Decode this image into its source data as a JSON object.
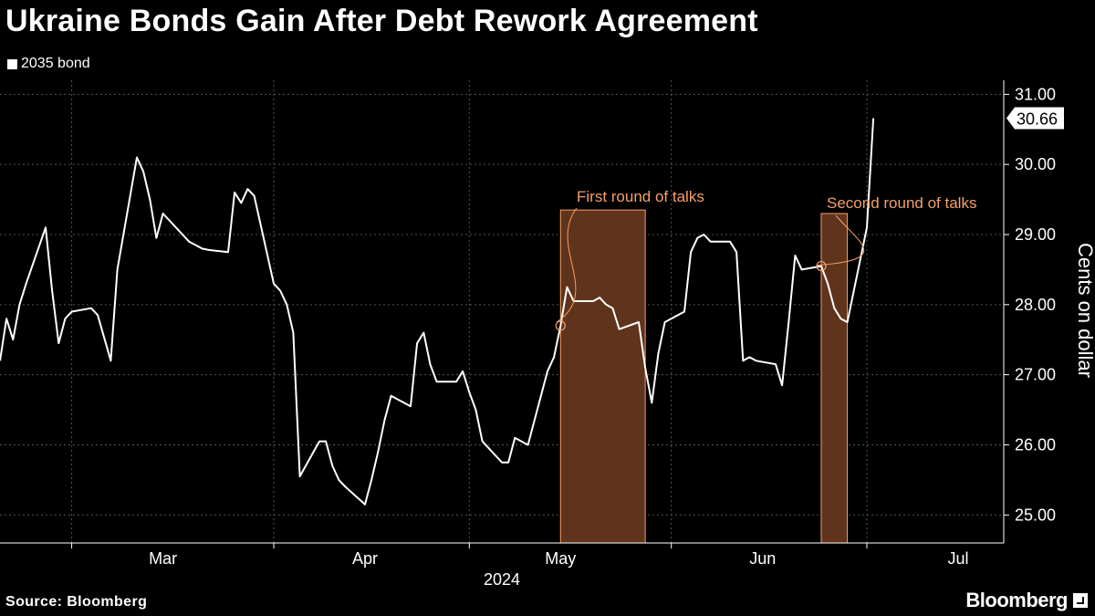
{
  "title": "Ukraine Bonds Gain After Debt Rework Agreement",
  "source": "Source: Bloomberg",
  "brand": "Bloomberg",
  "colors": {
    "background": "#000000",
    "line": "#ffffff",
    "shade_fill": "#60331c",
    "shade_stroke": "#f4a06a",
    "annotation": "#f4a06a",
    "grid": "#555555"
  },
  "chart_data": {
    "type": "line",
    "title": "Ukraine Bonds Gain After Debt Rework Agreement",
    "xlabel": "",
    "ylabel": "Cents on dollar",
    "year_label": "2024",
    "ylim": [
      24.6,
      31.2
    ],
    "y_ticks": [
      25.0,
      26.0,
      27.0,
      28.0,
      29.0,
      30.0,
      31.0
    ],
    "y_tick_labels": [
      "25.00",
      "26.00",
      "27.00",
      "28.00",
      "29.00",
      "30.00",
      "31.00"
    ],
    "x_range": [
      "2024-02-19",
      "2024-07-22"
    ],
    "month_labels": [
      {
        "label": "Mar",
        "date": "2024-03-15"
      },
      {
        "label": "Apr",
        "date": "2024-04-15"
      },
      {
        "label": "May",
        "date": "2024-05-15"
      },
      {
        "label": "Jun",
        "date": "2024-06-15"
      },
      {
        "label": "Jul",
        "date": "2024-07-15"
      }
    ],
    "gridlines_dates": [
      "2024-03-01",
      "2024-04-01",
      "2024-05-01",
      "2024-06-01",
      "2024-07-01"
    ],
    "grid": true,
    "legend_placement": "top-left",
    "series": [
      {
        "name": "2035 bond",
        "points": [
          [
            "2024-02-19",
            27.2
          ],
          [
            "2024-02-20",
            27.8
          ],
          [
            "2024-02-21",
            27.5
          ],
          [
            "2024-02-22",
            28.0
          ],
          [
            "2024-02-23",
            28.3
          ],
          [
            "2024-02-26",
            29.1
          ],
          [
            "2024-02-27",
            28.2
          ],
          [
            "2024-02-28",
            27.45
          ],
          [
            "2024-02-29",
            27.8
          ],
          [
            "2024-03-01",
            27.9
          ],
          [
            "2024-03-04",
            27.95
          ],
          [
            "2024-03-05",
            27.85
          ],
          [
            "2024-03-07",
            27.2
          ],
          [
            "2024-03-08",
            28.5
          ],
          [
            "2024-03-11",
            30.1
          ],
          [
            "2024-03-12",
            29.9
          ],
          [
            "2024-03-13",
            29.5
          ],
          [
            "2024-03-14",
            28.95
          ],
          [
            "2024-03-15",
            29.3
          ],
          [
            "2024-03-18",
            29.0
          ],
          [
            "2024-03-19",
            28.9
          ],
          [
            "2024-03-20",
            28.85
          ],
          [
            "2024-03-21",
            28.8
          ],
          [
            "2024-03-22",
            28.78
          ],
          [
            "2024-03-25",
            28.75
          ],
          [
            "2024-03-26",
            29.6
          ],
          [
            "2024-03-27",
            29.45
          ],
          [
            "2024-03-28",
            29.65
          ],
          [
            "2024-03-29",
            29.55
          ],
          [
            "2024-04-01",
            28.3
          ],
          [
            "2024-04-02",
            28.2
          ],
          [
            "2024-04-03",
            28.0
          ],
          [
            "2024-04-04",
            27.6
          ],
          [
            "2024-04-05",
            25.55
          ],
          [
            "2024-04-08",
            26.05
          ],
          [
            "2024-04-09",
            26.05
          ],
          [
            "2024-04-10",
            25.7
          ],
          [
            "2024-04-11",
            25.5
          ],
          [
            "2024-04-12",
            25.4
          ],
          [
            "2024-04-15",
            25.15
          ],
          [
            "2024-04-16",
            25.5
          ],
          [
            "2024-04-17",
            25.9
          ],
          [
            "2024-04-18",
            26.35
          ],
          [
            "2024-04-19",
            26.7
          ],
          [
            "2024-04-22",
            26.55
          ],
          [
            "2024-04-23",
            27.45
          ],
          [
            "2024-04-24",
            27.6
          ],
          [
            "2024-04-25",
            27.15
          ],
          [
            "2024-04-26",
            26.9
          ],
          [
            "2024-04-29",
            26.9
          ],
          [
            "2024-04-30",
            27.05
          ],
          [
            "2024-05-01",
            26.75
          ],
          [
            "2024-05-02",
            26.5
          ],
          [
            "2024-05-03",
            26.05
          ],
          [
            "2024-05-06",
            25.75
          ],
          [
            "2024-05-07",
            25.75
          ],
          [
            "2024-05-08",
            26.1
          ],
          [
            "2024-05-09",
            26.05
          ],
          [
            "2024-05-10",
            26.0
          ],
          [
            "2024-05-13",
            27.05
          ],
          [
            "2024-05-14",
            27.25
          ],
          [
            "2024-05-15",
            27.7
          ],
          [
            "2024-05-16",
            28.25
          ],
          [
            "2024-05-17",
            28.05
          ],
          [
            "2024-05-20",
            28.05
          ],
          [
            "2024-05-21",
            28.1
          ],
          [
            "2024-05-22",
            28.0
          ],
          [
            "2024-05-23",
            27.95
          ],
          [
            "2024-05-24",
            27.65
          ],
          [
            "2024-05-27",
            27.75
          ],
          [
            "2024-05-28",
            27.1
          ],
          [
            "2024-05-29",
            26.6
          ],
          [
            "2024-05-30",
            27.3
          ],
          [
            "2024-05-31",
            27.75
          ],
          [
            "2024-06-03",
            27.9
          ],
          [
            "2024-06-04",
            28.75
          ],
          [
            "2024-06-05",
            28.95
          ],
          [
            "2024-06-06",
            29.0
          ],
          [
            "2024-06-07",
            28.9
          ],
          [
            "2024-06-10",
            28.9
          ],
          [
            "2024-06-11",
            28.75
          ],
          [
            "2024-06-12",
            27.2
          ],
          [
            "2024-06-13",
            27.25
          ],
          [
            "2024-06-14",
            27.2
          ],
          [
            "2024-06-17",
            27.15
          ],
          [
            "2024-06-18",
            26.85
          ],
          [
            "2024-06-19",
            27.75
          ],
          [
            "2024-06-20",
            28.7
          ],
          [
            "2024-06-21",
            28.5
          ],
          [
            "2024-06-24",
            28.55
          ],
          [
            "2024-06-25",
            28.3
          ],
          [
            "2024-06-26",
            27.95
          ],
          [
            "2024-06-27",
            27.8
          ],
          [
            "2024-06-28",
            27.75
          ],
          [
            "2024-07-01",
            29.1
          ],
          [
            "2024-07-02",
            30.66
          ]
        ]
      }
    ],
    "last_value": {
      "date": "2024-07-02",
      "value": 30.66,
      "label": "30.66"
    },
    "shaded_regions": [
      {
        "label": "First round of talks",
        "start": "2024-05-15",
        "end": "2024-05-28",
        "top_value": 29.35,
        "bottom_value": 24.6,
        "marker_date": "2024-05-15",
        "marker_value": 27.7
      },
      {
        "label": "Second round of talks",
        "start": "2024-06-24",
        "end": "2024-06-28",
        "top_value": 29.3,
        "bottom_value": 24.6,
        "marker_date": "2024-06-24",
        "marker_value": 28.55
      }
    ]
  }
}
